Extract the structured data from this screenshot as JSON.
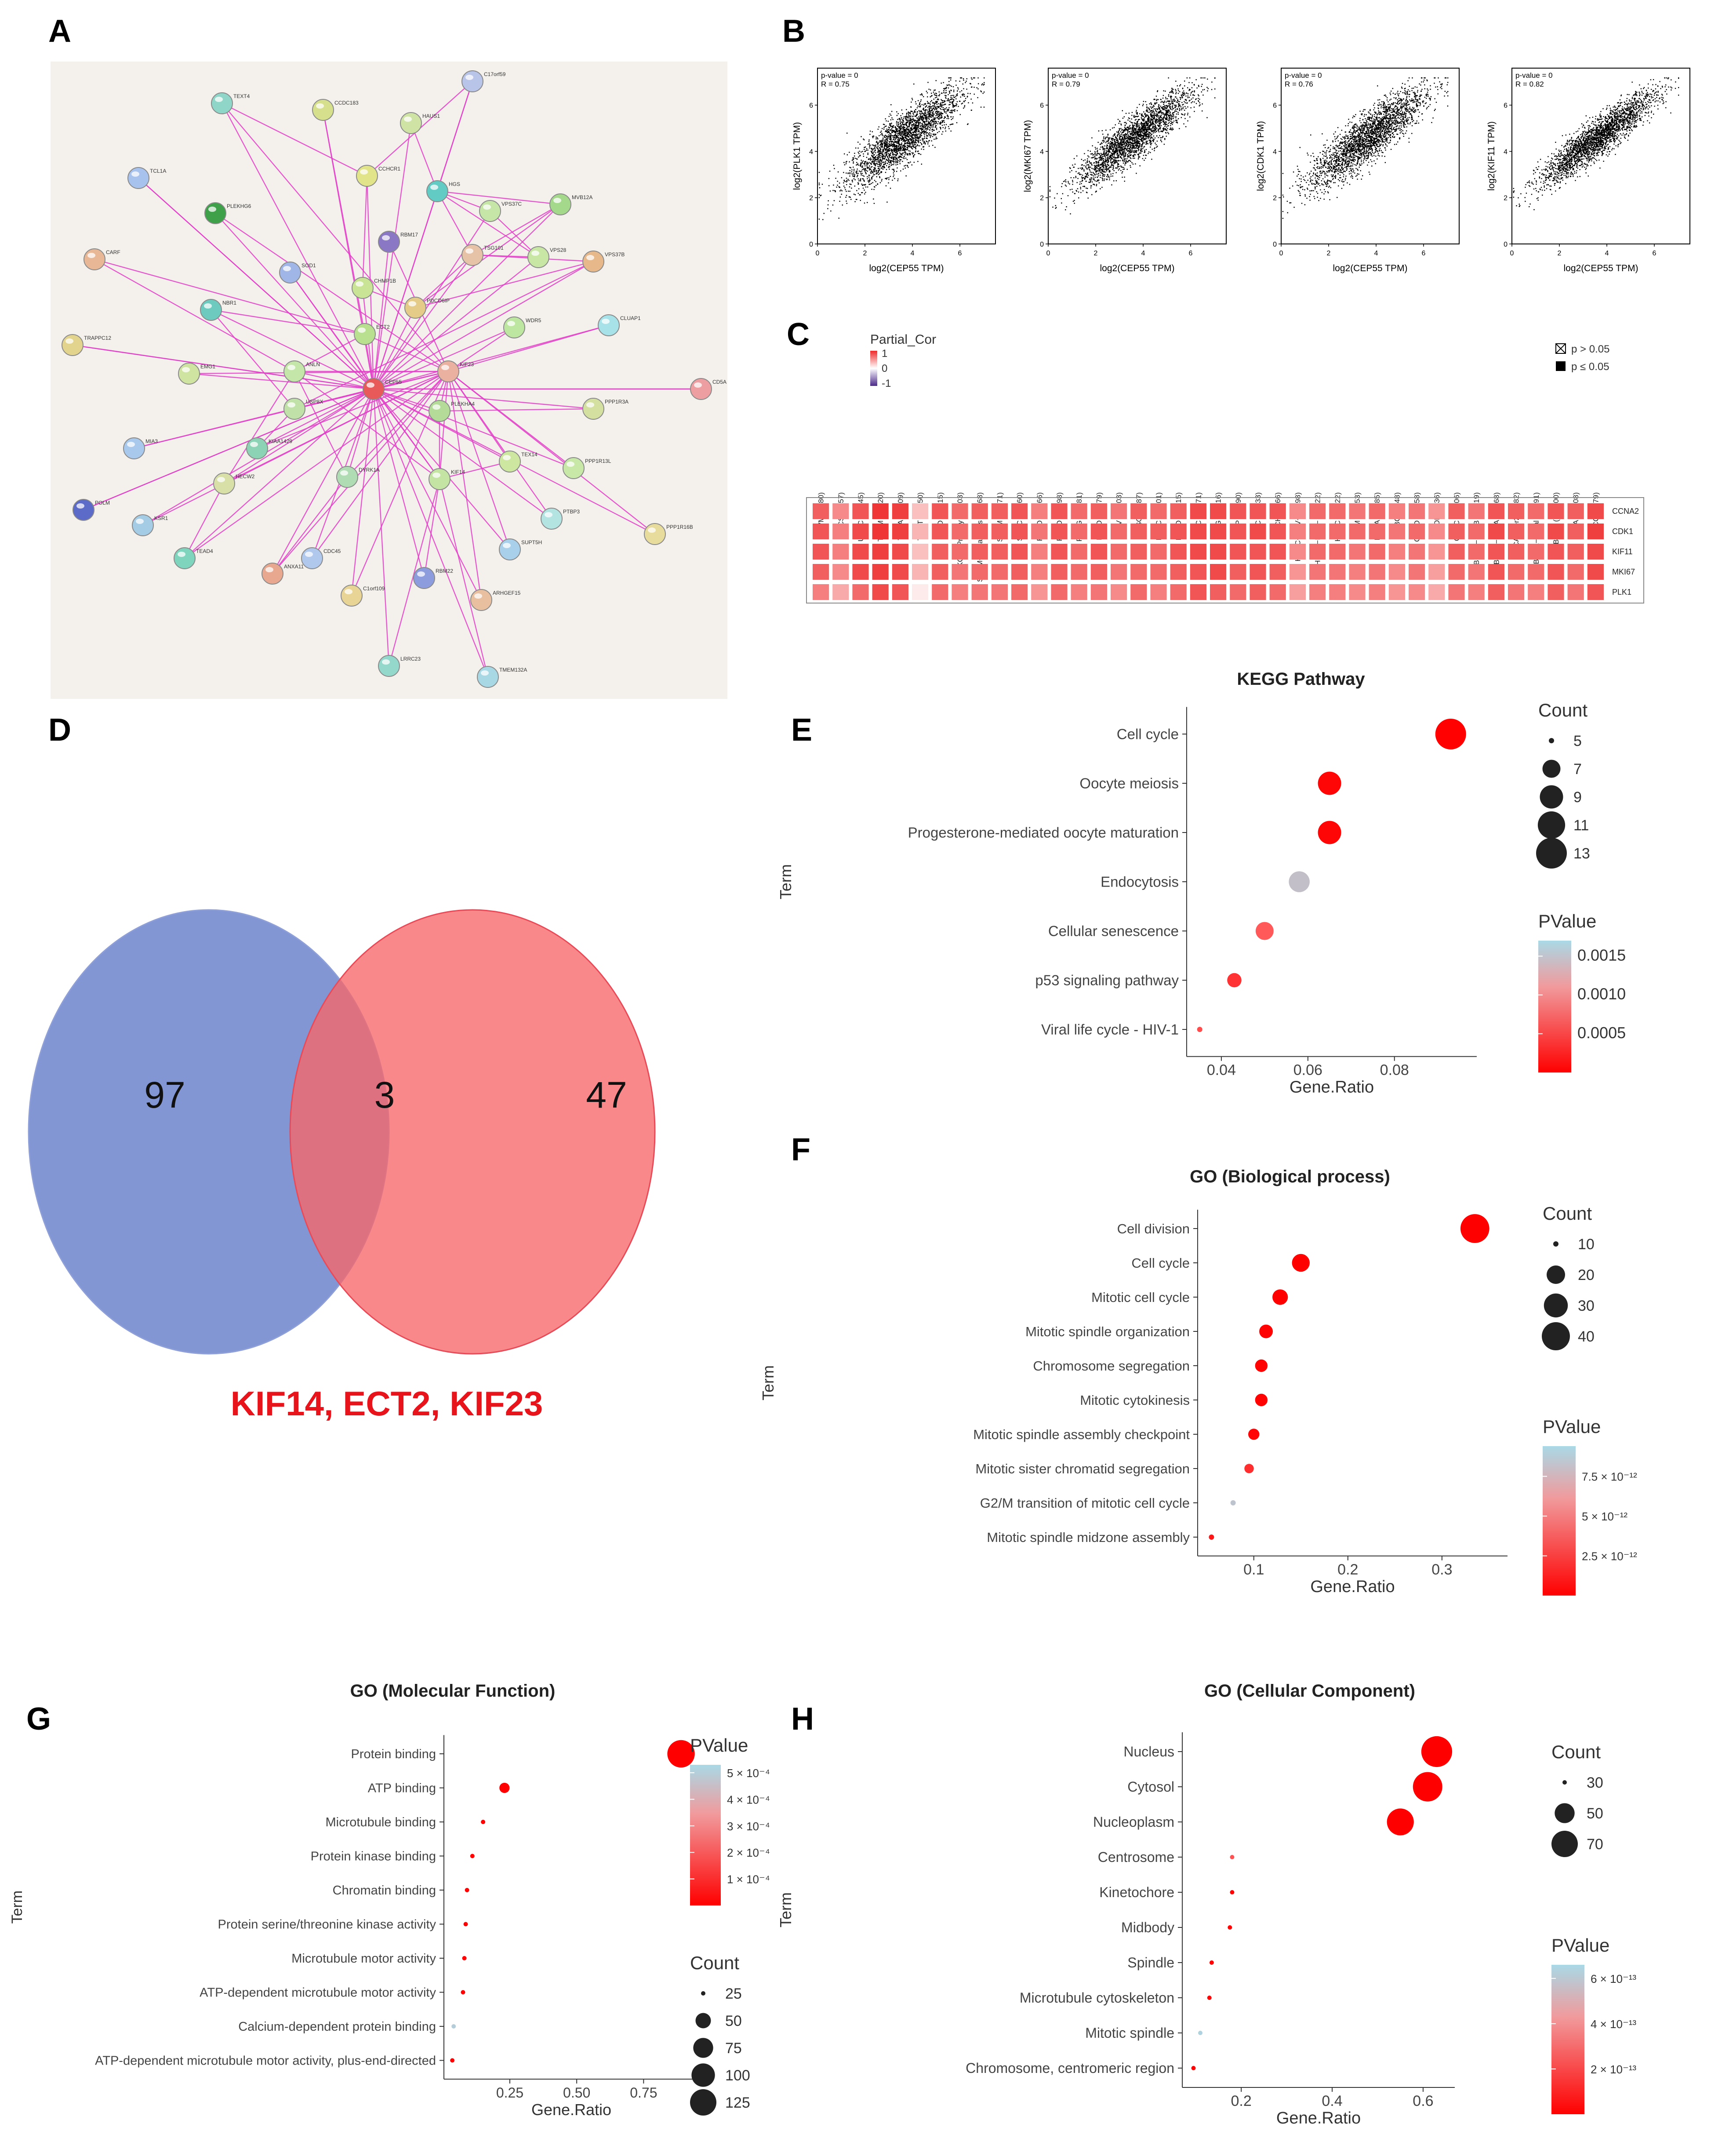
{
  "panel_letters": {
    "A": "A",
    "B": "B",
    "C": "C",
    "D": "D",
    "E": "E",
    "F": "F",
    "G": "G",
    "H": "H"
  },
  "network": {
    "nodes": [
      {
        "id": "C17orf59",
        "color": "#b8c4e8"
      },
      {
        "id": "TEXT4",
        "color": "#8fd6c8"
      },
      {
        "id": "CCDC183",
        "color": "#d6e08c"
      },
      {
        "id": "HAUS1",
        "color": "#cfe4a4"
      },
      {
        "id": "TCL1A",
        "color": "#a7c2ec"
      },
      {
        "id": "CCHCR1",
        "color": "#e2e48a"
      },
      {
        "id": "HGS",
        "color": "#62cbc4"
      },
      {
        "id": "PLEKHG6",
        "color": "#3fa04a"
      },
      {
        "id": "VPS37C",
        "color": "#c5e6a6"
      },
      {
        "id": "MVB12A",
        "color": "#a4d88a"
      },
      {
        "id": "RBM17",
        "color": "#8a78c4"
      },
      {
        "id": "CARF",
        "color": "#e8b896"
      },
      {
        "id": "SOD1",
        "color": "#9fb6e6"
      },
      {
        "id": "TSG101",
        "color": "#e6c2a6"
      },
      {
        "id": "VPS28",
        "color": "#c8e6a4"
      },
      {
        "id": "VPS37B",
        "color": "#e6b88a"
      },
      {
        "id": "CHMP1B",
        "color": "#c8e494"
      },
      {
        "id": "PDCD6IP",
        "color": "#e4cc88"
      },
      {
        "id": "NBR1",
        "color": "#6ccabe"
      },
      {
        "id": "CLUAP1",
        "color": "#a6e2e8"
      },
      {
        "id": "WDR5",
        "color": "#bde6a0"
      },
      {
        "id": "TRAPPC12",
        "color": "#e2d48c"
      },
      {
        "id": "ECT2",
        "color": "#b8e08e"
      },
      {
        "id": "EMG1",
        "color": "#cfe4a0"
      },
      {
        "id": "ANLN",
        "color": "#c4e6a8"
      },
      {
        "id": "CEP55",
        "color": "#e85a5a"
      },
      {
        "id": "KIF23",
        "color": "#eab0a0"
      },
      {
        "id": "CD5A",
        "color": "#ec9ea0"
      },
      {
        "id": "USP8X",
        "color": "#c0e2a8"
      },
      {
        "id": "PLEKHA4",
        "color": "#b4dc98"
      },
      {
        "id": "PPP1R3A",
        "color": "#d4e0a0"
      },
      {
        "id": "MIA3",
        "color": "#a8c8ec"
      },
      {
        "id": "KIAA1429",
        "color": "#8cd2b4"
      },
      {
        "id": "TEX14",
        "color": "#cde6a0"
      },
      {
        "id": "PPP1R13L",
        "color": "#c8e8a8"
      },
      {
        "id": "HECW2",
        "color": "#d8e0a8"
      },
      {
        "id": "DYRK1A",
        "color": "#b0dcb4"
      },
      {
        "id": "KIF14",
        "color": "#c4e4a4"
      },
      {
        "id": "POLM",
        "color": "#5c6ac8"
      },
      {
        "id": "PTBP3",
        "color": "#b4e4e2"
      },
      {
        "id": "PPP1R16B",
        "color": "#e8dc9c"
      },
      {
        "id": "KSR1",
        "color": "#a4cce4"
      },
      {
        "id": "TEAD4",
        "color": "#7ed4bc"
      },
      {
        "id": "ANXA11",
        "color": "#e8a890"
      },
      {
        "id": "CDC45",
        "color": "#b0c8ec"
      },
      {
        "id": "SUPT5H",
        "color": "#a8d0ea"
      },
      {
        "id": "RBM22",
        "color": "#8c9cdc"
      },
      {
        "id": "C1orf109",
        "color": "#e8d494"
      },
      {
        "id": "ARHGEF15",
        "color": "#e8c0a0"
      },
      {
        "id": "LRRC23",
        "color": "#94d8cc"
      },
      {
        "id": "TMEM132A",
        "color": "#a8d8e4"
      }
    ]
  },
  "correlation_plots": [
    {
      "pvalue": "p-value = 0",
      "r": "R = 0.75",
      "ylabel": "log2(PLK1 TPM)",
      "xlabel": "log2(CEP55 TPM)"
    },
    {
      "pvalue": "p-value = 0",
      "r": "R = 0.79",
      "ylabel": "log2(MKI67 TPM)",
      "xlabel": "log2(CEP55 TPM)"
    },
    {
      "pvalue": "p-value = 0",
      "r": "R = 0.76",
      "ylabel": "log2(CDK1 TPM)",
      "xlabel": "log2(CEP55 TPM)"
    },
    {
      "pvalue": "p-value = 0",
      "r": "R = 0.82",
      "ylabel": "log2(KIF11 TPM)",
      "xlabel": "log2(CEP55 TPM)"
    }
  ],
  "correlation_axes": {
    "xticks": [
      "0",
      "2",
      "4",
      "6"
    ],
    "yticks": [
      "0",
      "2",
      "4",
      "6"
    ]
  },
  "heatmap": {
    "legend_title": "Partial_Cor",
    "legend_ticks": [
      "1",
      "0",
      "-1"
    ],
    "sig_legend": [
      "p > 0.05",
      "p ≤ 0.05"
    ],
    "columns": [
      "UVM (n=80)",
      "UCS (n=57)",
      "UCEC (n=545)",
      "THYM (n=120)",
      "THCA (n=509)",
      "TGCT (n=150)",
      "STAD (n=415)",
      "SKCM−Primary (n=103)",
      "SKCM−Metastasis (n=368)",
      "SKCM (n=471)",
      "SARC (n=260)",
      "READ (n=166)",
      "PRAD (n=498)",
      "PCPG (n=181)",
      "PAAD (n=179)",
      "OV (n=303)",
      "MESO (n=87)",
      "LUSC (n=501)",
      "LUAD (n=515)",
      "LIHC (n=371)",
      "LGG (n=516)",
      "KIRP (n=290)",
      "KIRC (n=533)",
      "KICH (n=66)",
      "HNSC−HPV+ (n=98)",
      "HNSC−HPV− (n=422)",
      "HNSC (n=522)",
      "GBM (n=153)",
      "ESCA (n=185)",
      "DLBC (n=48)",
      "COAD (n=458)",
      "CHOL (n=36)",
      "CESC (n=306)",
      "BRCA−LumB (n=219)",
      "BRCA−LumA (n=568)",
      "BRCA−Her2 (n=82)",
      "BRCA−Basal (n=191)",
      "BRCA (n=1100)",
      "BLCA (n=408)",
      "ACC (n=79)"
    ],
    "rows": [
      "CCNA2",
      "CDK1",
      "KIF11",
      "MKI67",
      "PLK1"
    ],
    "values": [
      [
        0.75,
        0.55,
        0.8,
        0.95,
        0.9,
        0.3,
        0.8,
        0.7,
        0.75,
        0.75,
        0.8,
        0.6,
        0.8,
        0.7,
        0.75,
        0.65,
        0.75,
        0.7,
        0.75,
        0.85,
        0.85,
        0.8,
        0.8,
        0.8,
        0.55,
        0.7,
        0.7,
        0.65,
        0.7,
        0.6,
        0.65,
        0.5,
        0.75,
        0.65,
        0.8,
        0.75,
        0.7,
        0.8,
        0.75,
        0.85
      ],
      [
        0.8,
        0.6,
        0.85,
        0.95,
        0.9,
        0.35,
        0.8,
        0.7,
        0.75,
        0.75,
        0.8,
        0.65,
        0.8,
        0.7,
        0.8,
        0.7,
        0.75,
        0.75,
        0.8,
        0.85,
        0.85,
        0.8,
        0.85,
        0.8,
        0.6,
        0.7,
        0.7,
        0.7,
        0.7,
        0.65,
        0.7,
        0.55,
        0.75,
        0.7,
        0.85,
        0.75,
        0.7,
        0.85,
        0.75,
        0.9
      ],
      [
        0.8,
        0.6,
        0.85,
        0.9,
        0.85,
        0.3,
        0.75,
        0.7,
        0.75,
        0.75,
        0.8,
        0.6,
        0.8,
        0.7,
        0.8,
        0.7,
        0.75,
        0.7,
        0.8,
        0.85,
        0.85,
        0.8,
        0.8,
        0.8,
        0.55,
        0.7,
        0.7,
        0.65,
        0.7,
        0.6,
        0.65,
        0.5,
        0.75,
        0.7,
        0.8,
        0.75,
        0.7,
        0.8,
        0.75,
        0.85
      ],
      [
        0.75,
        0.55,
        0.85,
        0.9,
        0.85,
        0.35,
        0.75,
        0.65,
        0.7,
        0.7,
        0.75,
        0.6,
        0.75,
        0.7,
        0.75,
        0.65,
        0.7,
        0.7,
        0.75,
        0.8,
        0.85,
        0.75,
        0.8,
        0.75,
        0.5,
        0.65,
        0.65,
        0.6,
        0.65,
        0.55,
        0.65,
        0.45,
        0.7,
        0.65,
        0.8,
        0.7,
        0.7,
        0.8,
        0.7,
        0.85
      ],
      [
        0.6,
        0.4,
        0.7,
        0.85,
        0.8,
        0.1,
        0.7,
        0.6,
        0.65,
        0.65,
        0.7,
        0.5,
        0.7,
        0.6,
        0.65,
        0.55,
        0.7,
        0.6,
        0.7,
        0.8,
        0.75,
        0.7,
        0.75,
        0.7,
        0.45,
        0.6,
        0.6,
        0.55,
        0.6,
        0.5,
        0.55,
        0.4,
        0.65,
        0.6,
        0.75,
        0.65,
        0.6,
        0.75,
        0.65,
        0.8
      ]
    ]
  },
  "venn": {
    "left": "97",
    "center": "3",
    "right": "47",
    "genes": "KIF14, ECT2, KIF23"
  },
  "chart_data": [
    {
      "id": "E",
      "type": "scatter",
      "title": "KEGG Pathway",
      "xlabel": "Gene.Ratio",
      "ylabel": "Term",
      "xlim": [
        0.033,
        0.098
      ],
      "xticks": [
        0.04,
        0.06,
        0.08
      ],
      "terms": [
        "Cell cycle",
        "Oocyte meiosis",
        "Progesterone-mediated oocyte maturation",
        "Endocytosis",
        "Cellular senescence",
        "p53 signaling pathway",
        "Viral life cycle - HIV-1"
      ],
      "x": [
        0.093,
        0.065,
        0.065,
        0.058,
        0.05,
        0.043,
        0.035
      ],
      "count": [
        13,
        9,
        9,
        8,
        7,
        6,
        5
      ],
      "p": [
        1e-05,
        5e-05,
        5e-05,
        0.0015,
        0.0007,
        0.0004,
        0.0006
      ],
      "size_legend": {
        "title": "Count",
        "labels": [
          "5",
          "7",
          "9",
          "11",
          "13"
        ],
        "values": [
          5,
          7,
          9,
          11,
          13
        ]
      },
      "color_legend": {
        "title": "PValue",
        "labels": [
          "0.0015",
          "0.0010",
          "0.0005"
        ],
        "values": [
          0.0015,
          0.001,
          0.0005
        ],
        "pmax": 0.0017
      }
    },
    {
      "id": "F",
      "type": "scatter",
      "title": "GO (Biological process)",
      "xlabel": "Gene.Ratio",
      "ylabel": "Term",
      "xlim": [
        0.045,
        0.365
      ],
      "xticks": [
        0.1,
        0.2,
        0.3
      ],
      "terms": [
        "Cell division",
        "Cell cycle",
        "Mitotic cell cycle",
        "Mitotic spindle organization",
        "Chromosome segregation",
        "Mitotic cytokinesis",
        "Mitotic spindle assembly checkpoint",
        "Mitotic sister chromatid segregation",
        "G2/M transition of mitotic cell cycle",
        "Mitotic spindle midzone assembly"
      ],
      "x": [
        0.335,
        0.15,
        0.128,
        0.113,
        0.108,
        0.108,
        0.1,
        0.095,
        0.078,
        0.055
      ],
      "count": [
        42,
        19,
        16,
        14,
        13,
        13,
        12,
        11,
        9,
        6
      ],
      "p": [
        1e-20,
        1e-16,
        1e-14,
        1e-13,
        1e-13,
        1e-13,
        2e-13,
        2e-12,
        8.5e-12,
        1e-12
      ],
      "size_legend": {
        "title": "Count",
        "labels": [
          "10",
          "20",
          "30",
          "40"
        ],
        "values": [
          10,
          20,
          30,
          40
        ]
      },
      "color_legend": {
        "title": "PValue",
        "labels": [
          "7.5 × 10⁻¹²",
          "5 × 10⁻¹²",
          "2.5 × 10⁻¹²"
        ],
        "values": [
          7.5e-12,
          5e-12,
          2.5e-12
        ],
        "pmax": 9.4e-12
      }
    },
    {
      "id": "G",
      "type": "scatter",
      "title": "GO (Molecular Function)",
      "xlabel": "Gene.Ratio",
      "ylabel": "Term",
      "xlim": [
        0.02,
        0.94
      ],
      "xticks": [
        0.25,
        0.5,
        0.75
      ],
      "xtick_labels": [
        "0.25",
        "0.50",
        "0.75"
      ],
      "terms": [
        "Protein binding",
        "ATP binding",
        "Microtubule binding",
        "Protein kinase binding",
        "Chromatin binding",
        "Protein serine/threonine kinase activity",
        "Microtubule motor activity",
        "ATP-dependent microtubule motor activity",
        "Calcium-dependent protein binding",
        "ATP-dependent microtubule motor activity, plus-end-directed"
      ],
      "x": [
        0.89,
        0.23,
        0.15,
        0.11,
        0.09,
        0.085,
        0.08,
        0.075,
        0.04,
        0.035
      ],
      "count": [
        135,
        32,
        22,
        16,
        13,
        12,
        11,
        10,
        6,
        5
      ],
      "p": [
        1e-10,
        1e-07,
        1e-07,
        1e-07,
        1e-06,
        1e-07,
        1e-07,
        1e-07,
        0.0005,
        1e-08
      ],
      "size_legend": {
        "title": "Count",
        "labels": [
          "25",
          "50",
          "75",
          "100",
          "125"
        ],
        "values": [
          25,
          50,
          75,
          100,
          125
        ]
      },
      "color_legend": {
        "title": "PValue",
        "labels": [
          "5 × 10⁻⁴",
          "4 × 10⁻⁴",
          "3 × 10⁻⁴",
          "2 × 10⁻⁴",
          "1 × 10⁻⁴"
        ],
        "values": [
          0.0005,
          0.0004,
          0.0003,
          0.0002,
          0.0001
        ],
        "pmax": 0.00053
      }
    },
    {
      "id": "H",
      "type": "scatter",
      "title": "GO (Cellular Component)",
      "xlabel": "Gene.Ratio",
      "ylabel": "Term",
      "xlim": [
        0.08,
        0.66
      ],
      "xticks": [
        0.2,
        0.4,
        0.6
      ],
      "terms": [
        "Nucleus",
        "Cytosol",
        "Nucleoplasm",
        "Centrosome",
        "Kinetochore",
        "Midbody",
        "Spindle",
        "Microtubule cytoskeleton",
        "Mitotic spindle",
        "Chromosome, centromeric region"
      ],
      "x": [
        0.63,
        0.61,
        0.55,
        0.18,
        0.18,
        0.175,
        0.135,
        0.13,
        0.11,
        0.095
      ],
      "count": [
        88,
        82,
        72,
        26,
        23,
        22,
        17,
        16,
        12,
        10
      ],
      "p": [
        1e-20,
        1e-18,
        1e-16,
        2.5e-13,
        1e-14,
        1e-14,
        1e-14,
        1e-14,
        6.4e-13,
        1e-14
      ],
      "size_legend": {
        "title": "Count",
        "labels": [
          "30",
          "50",
          "70"
        ],
        "values": [
          30,
          50,
          70
        ]
      },
      "color_legend": {
        "title": "PValue",
        "labels": [
          "6 × 10⁻¹³",
          "4 × 10⁻¹³",
          "2 × 10⁻¹³"
        ],
        "values": [
          6e-13,
          4e-13,
          2e-13
        ],
        "pmax": 6.6e-13
      }
    }
  ]
}
